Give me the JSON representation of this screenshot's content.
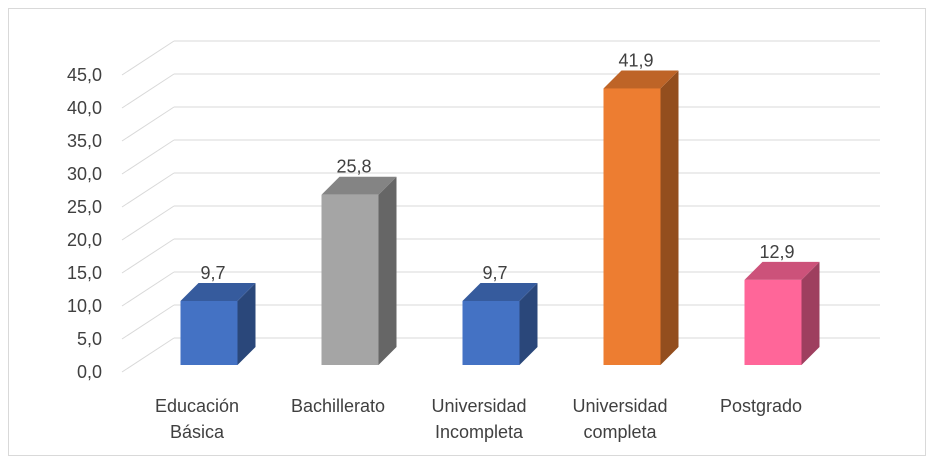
{
  "chart_data": {
    "type": "bar",
    "title": "",
    "xlabel": "",
    "ylabel": "",
    "ylim": [
      0,
      45
    ],
    "ytick_step": 5,
    "grid": true,
    "categories": [
      [
        "Educación",
        "Básica"
      ],
      [
        "Bachillerato"
      ],
      [
        "Universidad",
        "Incompleta"
      ],
      [
        "Universidad",
        "completa"
      ],
      [
        "Postgrado"
      ]
    ],
    "values": [
      9.7,
      25.8,
      9.7,
      41.9,
      12.9
    ],
    "value_labels": [
      "9,7",
      "25,8",
      "9,7",
      "41,9",
      "12,9"
    ],
    "colors": [
      "#4472c4",
      "#a5a5a5",
      "#4472c4",
      "#ed7d31",
      "#ff6699"
    ]
  }
}
